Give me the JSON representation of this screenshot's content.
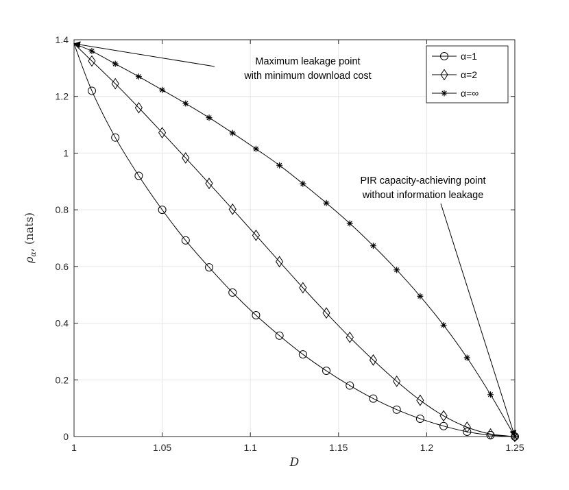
{
  "chart_data": {
    "type": "line",
    "title": "",
    "xlabel": "D",
    "ylabel": "ρα, (nats)",
    "ylabel_main": "ρ",
    "ylabel_sub": "α",
    "ylabel_unit": ", (nats)",
    "xlim": [
      1,
      1.25
    ],
    "ylim": [
      0,
      1.4
    ],
    "xticks": [
      1,
      1.05,
      1.1,
      1.15,
      1.2,
      1.25
    ],
    "xtick_labels": [
      "1",
      "1.05",
      "1.1",
      "1.15",
      "1.2",
      "1.25"
    ],
    "yticks": [
      0,
      0.2,
      0.4,
      0.6,
      0.8,
      1,
      1.2,
      1.4
    ],
    "ytick_labels": [
      "0",
      "0.2",
      "0.4",
      "0.6",
      "0.8",
      "1",
      "1.2",
      "1.4"
    ],
    "grid": true,
    "legend_position": "top-right",
    "series": [
      {
        "name": "α=1",
        "marker": "circle",
        "x": [
          1.0101,
          1.0234,
          1.0367,
          1.05,
          1.0633,
          1.0766,
          1.0899,
          1.1032,
          1.1165,
          1.1298,
          1.1431,
          1.1564,
          1.1697,
          1.183,
          1.1963,
          1.2096,
          1.2229,
          1.2362,
          1.25
        ],
        "y": [
          1.22,
          1.055,
          0.92,
          0.8,
          0.692,
          0.597,
          0.508,
          0.428,
          0.356,
          0.29,
          0.232,
          0.18,
          0.134,
          0.095,
          0.063,
          0.037,
          0.017,
          0.005,
          0.0
        ]
      },
      {
        "name": "α=2",
        "marker": "diamond",
        "x": [
          1.0101,
          1.0234,
          1.0367,
          1.05,
          1.0633,
          1.0766,
          1.0899,
          1.1032,
          1.1165,
          1.1298,
          1.1431,
          1.1564,
          1.1697,
          1.183,
          1.1963,
          1.2096,
          1.2229,
          1.2362,
          1.25
        ],
        "y": [
          1.325,
          1.245,
          1.16,
          1.072,
          0.983,
          0.893,
          0.802,
          0.71,
          0.617,
          0.525,
          0.436,
          0.35,
          0.27,
          0.195,
          0.128,
          0.073,
          0.033,
          0.009,
          0.0
        ]
      },
      {
        "name": "α=∞",
        "marker": "star",
        "x": [
          1.0101,
          1.0234,
          1.0367,
          1.05,
          1.0633,
          1.0766,
          1.0899,
          1.1032,
          1.1165,
          1.1298,
          1.1431,
          1.1564,
          1.1697,
          1.183,
          1.1963,
          1.2096,
          1.2229,
          1.2362,
          1.25
        ],
        "y": [
          1.36,
          1.315,
          1.27,
          1.223,
          1.175,
          1.125,
          1.071,
          1.015,
          0.957,
          0.892,
          0.824,
          0.752,
          0.673,
          0.588,
          0.495,
          0.393,
          0.278,
          0.148,
          0.0
        ]
      }
    ],
    "annotations": [
      {
        "text_lines": [
          "Maximum leakage point",
          "with minimum download cost"
        ],
        "arrow_to": [
          1.0,
          1.386
        ]
      },
      {
        "text_lines": [
          "PIR capacity-achieving point",
          "without information leakage"
        ],
        "arrow_to": [
          1.25,
          0.0
        ]
      }
    ]
  }
}
